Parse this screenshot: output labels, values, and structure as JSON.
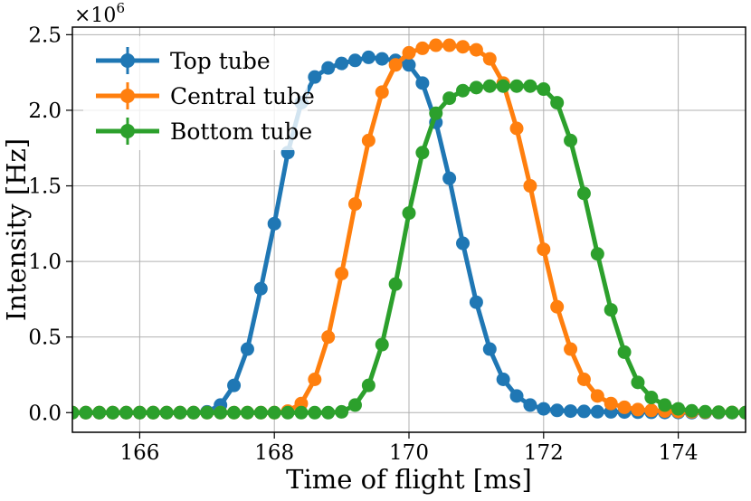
{
  "chart_data": {
    "type": "line",
    "title": "",
    "xlabel": "Time of flight [ms]",
    "ylabel": "Intensity [Hz]",
    "y_multiplier_label": "×10",
    "y_multiplier_exponent": "6",
    "xlim": [
      165.0,
      175.0
    ],
    "ylim": [
      -0.13,
      2.55
    ],
    "x_ticks": [
      166,
      168,
      170,
      172,
      174
    ],
    "x_tick_labels": [
      "166",
      "168",
      "170",
      "172",
      "174"
    ],
    "y_ticks": [
      0.0,
      0.5,
      1.0,
      1.5,
      2.0,
      2.5
    ],
    "y_tick_labels": [
      "0.0",
      "0.5",
      "1.0",
      "1.5",
      "2.0",
      "2.5"
    ],
    "grid": true,
    "legend_position": "top-left",
    "x": [
      165.0,
      165.2,
      165.4,
      165.6,
      165.8,
      166.0,
      166.2,
      166.4,
      166.6,
      166.8,
      167.0,
      167.2,
      167.4,
      167.6,
      167.8,
      168.0,
      168.2,
      168.4,
      168.6,
      168.8,
      169.0,
      169.2,
      169.4,
      169.6,
      169.8,
      170.0,
      170.2,
      170.4,
      170.6,
      170.8,
      171.0,
      171.2,
      171.4,
      171.6,
      171.8,
      172.0,
      172.2,
      172.4,
      172.6,
      172.8,
      173.0,
      173.2,
      173.4,
      173.6,
      173.8,
      174.0,
      174.2,
      174.4,
      174.6,
      174.8,
      175.0
    ],
    "series": [
      {
        "name": "Top tube",
        "color": "#1f77b4",
        "values": [
          0,
          0,
          0,
          0,
          0,
          0,
          0,
          0,
          0,
          0,
          0.005,
          0.05,
          0.18,
          0.42,
          0.82,
          1.25,
          1.72,
          2.05,
          2.22,
          2.28,
          2.31,
          2.33,
          2.35,
          2.34,
          2.33,
          2.3,
          2.18,
          1.92,
          1.55,
          1.12,
          0.73,
          0.42,
          0.22,
          0.11,
          0.05,
          0.025,
          0.015,
          0.01,
          0.008,
          0.006,
          0.005,
          0.004,
          0.003,
          0.002,
          0.001,
          0.001,
          0,
          0,
          0,
          0,
          0
        ]
      },
      {
        "name": "Central tube",
        "color": "#ff7f0e",
        "values": [
          0,
          0,
          0,
          0,
          0,
          0,
          0,
          0,
          0,
          0,
          0,
          0,
          0,
          0,
          0,
          0,
          0.01,
          0.06,
          0.22,
          0.5,
          0.92,
          1.38,
          1.8,
          2.12,
          2.3,
          2.38,
          2.41,
          2.43,
          2.43,
          2.42,
          2.4,
          2.34,
          2.18,
          1.88,
          1.5,
          1.08,
          0.7,
          0.42,
          0.22,
          0.11,
          0.06,
          0.035,
          0.02,
          0.015,
          0.01,
          0.007,
          0.005,
          0.003,
          0.002,
          0.001,
          0
        ]
      },
      {
        "name": "Bottom tube",
        "color": "#2ca02c",
        "values": [
          0,
          0,
          0,
          0,
          0,
          0,
          0,
          0,
          0,
          0,
          0,
          0,
          0,
          0,
          0,
          0,
          0,
          0,
          0,
          0,
          0.005,
          0.05,
          0.18,
          0.45,
          0.85,
          1.32,
          1.72,
          1.98,
          2.08,
          2.13,
          2.15,
          2.16,
          2.16,
          2.16,
          2.16,
          2.14,
          2.05,
          1.8,
          1.45,
          1.05,
          0.68,
          0.4,
          0.2,
          0.1,
          0.05,
          0.025,
          0.012,
          0.006,
          0.003,
          0.001,
          0
        ]
      }
    ]
  }
}
